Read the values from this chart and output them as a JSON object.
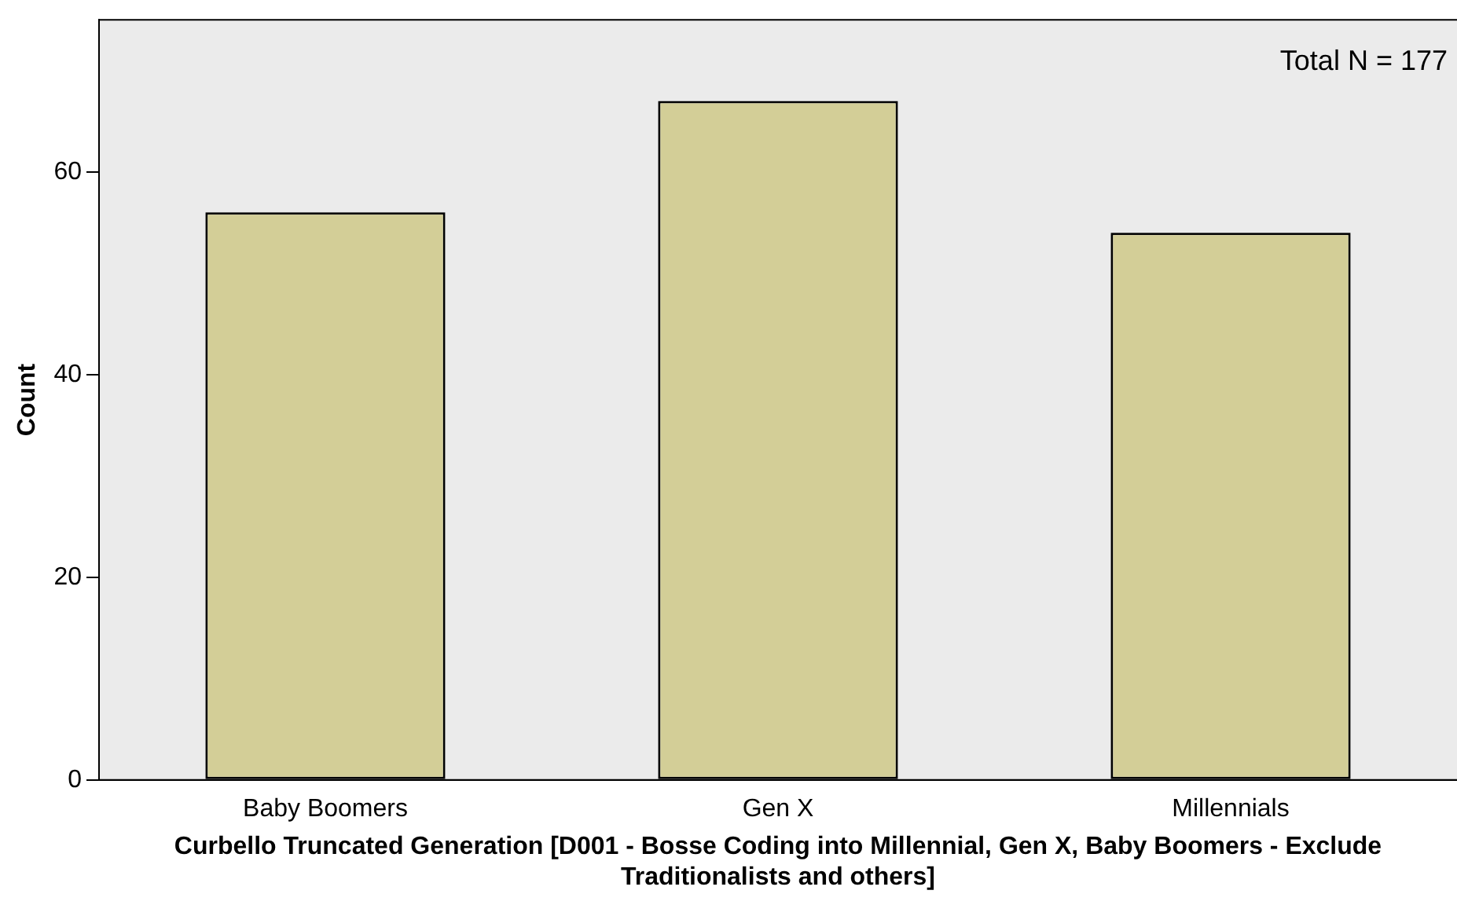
{
  "chart_data": {
    "type": "bar",
    "xlabel": "Curbello Truncated Generation [D001 - Bosse Coding into Millennial, Gen X, Baby Boomers - Exclude Traditionalists and others]",
    "ylabel": "Count",
    "categories": [
      "Baby Boomers",
      "Gen X",
      "Millennials"
    ],
    "values": [
      56,
      67,
      54
    ],
    "color": "#d3ce97",
    "ylim": [
      0,
      75
    ],
    "yticks": [
      0,
      20,
      40,
      60
    ],
    "grid": false,
    "legend": false,
    "annotations": [
      "Total N = 177"
    ]
  }
}
